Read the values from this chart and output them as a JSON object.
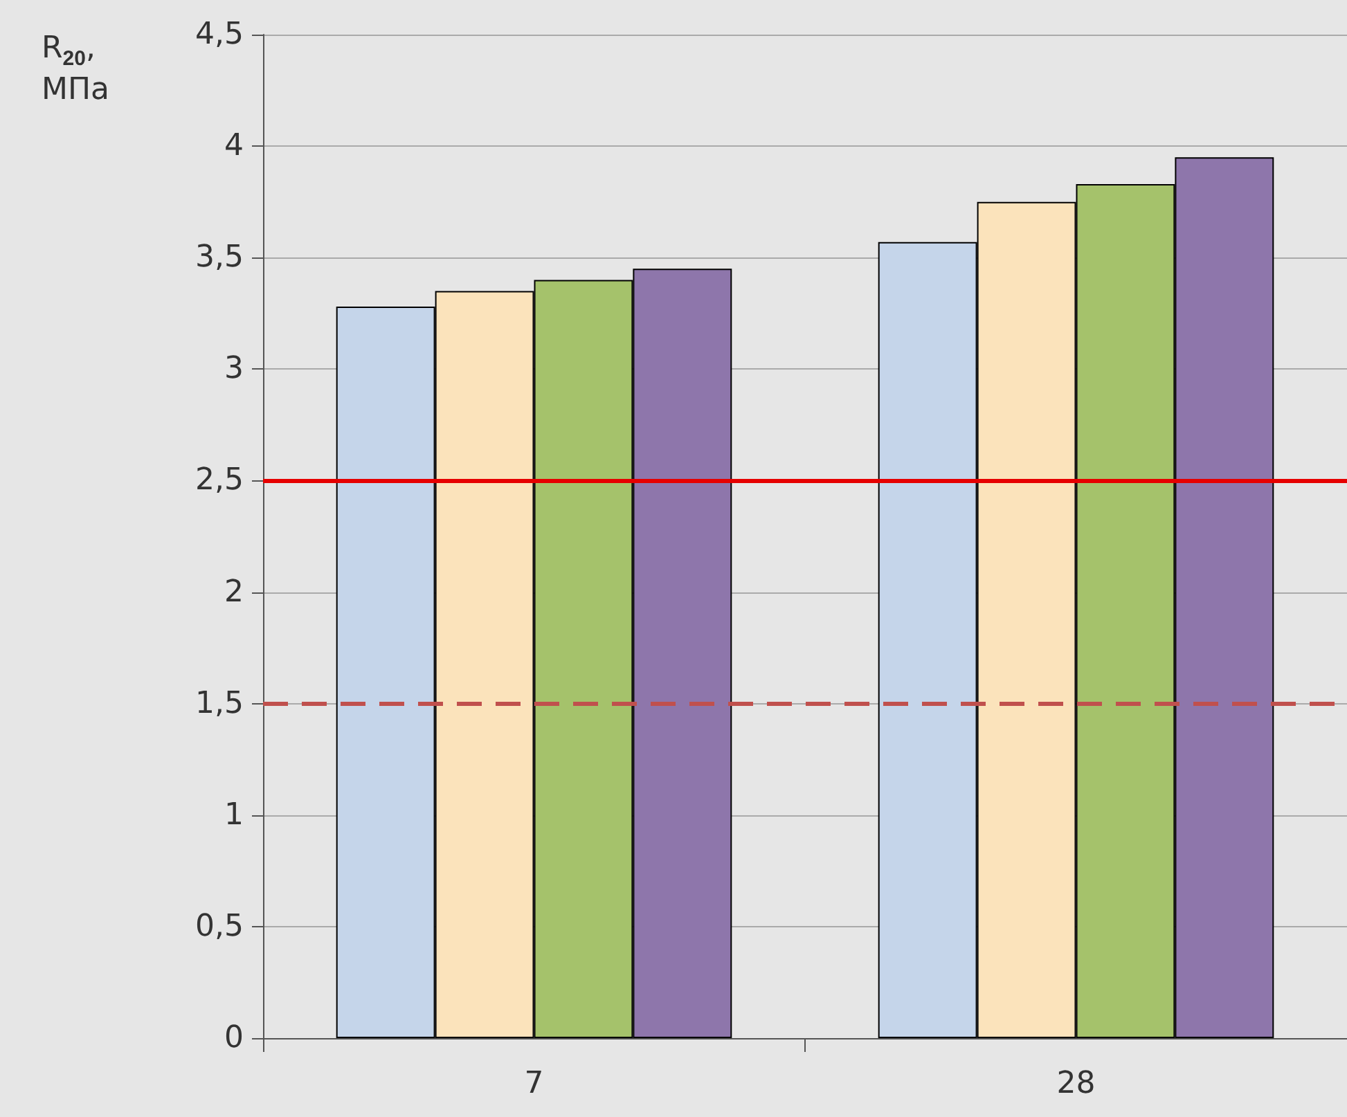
{
  "chart_data": {
    "type": "bar",
    "ylabel": "R$_{20}$, МПа",
    "categories": [
      "7",
      "28"
    ],
    "series": [
      {
        "color": "#c5d5ea",
        "values": [
          3.28,
          3.57
        ]
      },
      {
        "color": "#fbe3bb",
        "values": [
          3.35,
          3.75
        ]
      },
      {
        "color": "#a5c26b",
        "values": [
          3.4,
          3.83
        ]
      },
      {
        "color": "#8e76ab",
        "values": [
          3.45,
          3.95
        ]
      }
    ],
    "ylim": [
      0,
      4.5
    ],
    "yticks": [
      0,
      {
        "value": 0.5,
        "label": "0,5"
      },
      1,
      {
        "value": 1.5,
        "label": "1,5"
      },
      2,
      {
        "value": 2.5,
        "label": "2,5"
      },
      3,
      {
        "value": 3.5,
        "label": "3,5"
      },
      4,
      {
        "value": 4.5,
        "label": "4,5"
      }
    ],
    "grid": "y",
    "ref_lines": [
      {
        "axis": "y",
        "value": 2.5,
        "color": "#e60000",
        "line_style": "solid"
      },
      {
        "axis": "y",
        "value": 1.5,
        "color": "#c0504d",
        "line_style": "dashed"
      }
    ]
  }
}
